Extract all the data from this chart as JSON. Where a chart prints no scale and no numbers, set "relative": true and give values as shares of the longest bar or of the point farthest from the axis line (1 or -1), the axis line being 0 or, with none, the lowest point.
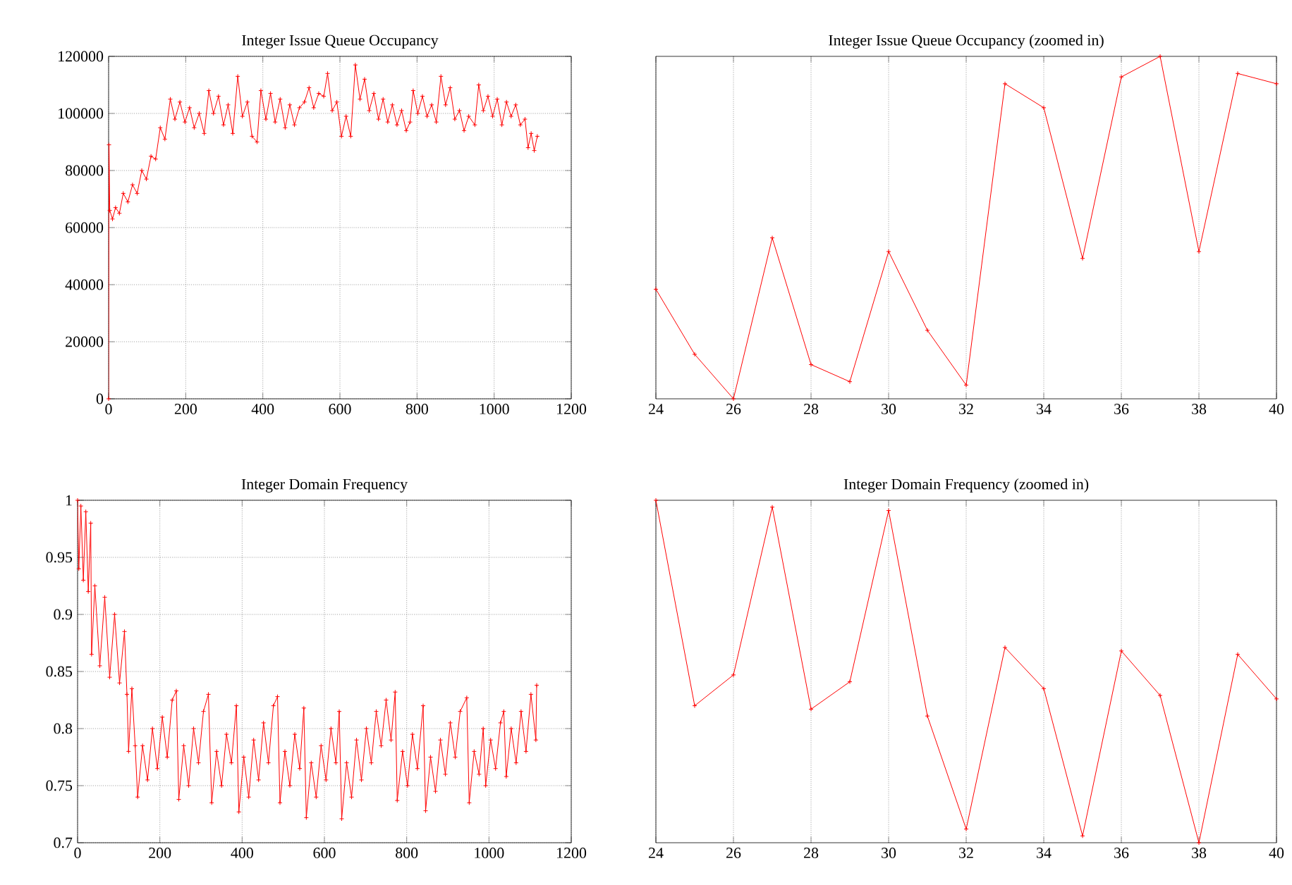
{
  "chart_data": [
    {
      "type": "line",
      "title": "Integer Issue Queue Occupancy",
      "color": "#ff0000",
      "marker": "cross",
      "line_style": "solid",
      "grid": true,
      "xlim": [
        0,
        1200
      ],
      "xticks": [
        0,
        200,
        400,
        600,
        800,
        1000,
        1200
      ],
      "ylim": [
        0,
        120000
      ],
      "yticks": [
        0,
        20000,
        40000,
        60000,
        80000,
        100000,
        120000
      ],
      "x": [
        0,
        1,
        3,
        10,
        18,
        28,
        38,
        50,
        62,
        74,
        86,
        98,
        110,
        122,
        134,
        146,
        160,
        172,
        185,
        198,
        210,
        222,
        235,
        248,
        260,
        272,
        285,
        298,
        310,
        322,
        335,
        347,
        360,
        372,
        385,
        395,
        408,
        420,
        432,
        445,
        458,
        470,
        482,
        495,
        508,
        520,
        532,
        545,
        558,
        568,
        580,
        592,
        604,
        616,
        628,
        640,
        652,
        664,
        676,
        688,
        700,
        712,
        724,
        736,
        748,
        760,
        772,
        782,
        790,
        802,
        814,
        826,
        838,
        850,
        862,
        874,
        886,
        898,
        910,
        922,
        934,
        950,
        960,
        972,
        984,
        996,
        1008,
        1020,
        1032,
        1044,
        1056,
        1068,
        1080,
        1088,
        1096,
        1104,
        1112
      ],
      "values": [
        0,
        89000,
        66000,
        63000,
        67000,
        65000,
        72000,
        69000,
        75000,
        72000,
        80000,
        77000,
        85000,
        84000,
        95000,
        91000,
        105000,
        98000,
        104000,
        97000,
        102000,
        95000,
        100000,
        93000,
        108000,
        100000,
        106000,
        96000,
        103000,
        93000,
        113000,
        99000,
        104000,
        92000,
        90000,
        108000,
        98000,
        107000,
        97000,
        105000,
        95000,
        103000,
        96000,
        102000,
        104000,
        109000,
        102000,
        107000,
        106000,
        114000,
        101000,
        104000,
        92000,
        99000,
        92000,
        117000,
        105000,
        112000,
        101000,
        107000,
        98000,
        105000,
        97000,
        103000,
        96000,
        101000,
        94000,
        97000,
        108000,
        100000,
        106000,
        99000,
        103000,
        97000,
        113000,
        103000,
        109000,
        98000,
        101000,
        94000,
        99000,
        96000,
        110000,
        101000,
        106000,
        99000,
        105000,
        96000,
        104000,
        99000,
        103000,
        96000,
        98000,
        88000,
        93000,
        87000,
        92000
      ]
    },
    {
      "type": "line",
      "title": "Integer Issue Queue Occupancy (zoomed in)",
      "color": "#ff0000",
      "marker": "cross",
      "line_style": "solid",
      "grid": "x",
      "relative": true,
      "tick_labels": "x",
      "xlim": [
        24,
        40
      ],
      "xticks": [
        24,
        26,
        28,
        30,
        32,
        34,
        36,
        38,
        40
      ],
      "x": [
        24,
        25,
        26,
        27,
        28,
        29,
        30,
        31,
        32,
        33,
        34,
        35,
        36,
        37,
        38,
        39,
        40
      ],
      "values": [
        0.32,
        0.13,
        0,
        0.47,
        0.1,
        0.05,
        0.43,
        0.2,
        0.04,
        0.92,
        0.85,
        0.41,
        0.94,
        1,
        0.43,
        0.95,
        0.92
      ]
    },
    {
      "type": "line",
      "title": "Integer Domain Frequency",
      "color": "#ff0000",
      "marker": "cross",
      "line_style": "solid",
      "grid": true,
      "xlim": [
        0,
        1200
      ],
      "xticks": [
        0,
        200,
        400,
        600,
        800,
        1000,
        1200
      ],
      "ylim": [
        0.7,
        1
      ],
      "yticks": [
        0.7,
        0.75,
        0.8,
        0.85,
        0.9,
        0.95,
        1
      ],
      "x": [
        0,
        3,
        8,
        14,
        20,
        26,
        32,
        34,
        42,
        54,
        66,
        78,
        90,
        102,
        114,
        120,
        124,
        132,
        140,
        146,
        158,
        170,
        182,
        194,
        206,
        218,
        230,
        240,
        246,
        258,
        270,
        282,
        294,
        306,
        318,
        326,
        338,
        350,
        362,
        374,
        386,
        392,
        404,
        416,
        428,
        440,
        452,
        464,
        476,
        486,
        492,
        504,
        516,
        528,
        540,
        550,
        556,
        568,
        580,
        592,
        604,
        616,
        628,
        636,
        642,
        654,
        666,
        678,
        690,
        702,
        714,
        726,
        738,
        750,
        762,
        772,
        777,
        790,
        802,
        814,
        826,
        840,
        846,
        858,
        870,
        882,
        894,
        906,
        918,
        930,
        946,
        952,
        964,
        976,
        986,
        992,
        1004,
        1016,
        1028,
        1036,
        1042,
        1054,
        1066,
        1078,
        1090,
        1102,
        1114,
        1116
      ],
      "values": [
        1.0,
        0.94,
        0.995,
        0.93,
        0.99,
        0.92,
        0.98,
        0.865,
        0.925,
        0.855,
        0.915,
        0.845,
        0.9,
        0.84,
        0.885,
        0.83,
        0.78,
        0.835,
        0.785,
        0.74,
        0.785,
        0.755,
        0.8,
        0.765,
        0.81,
        0.775,
        0.825,
        0.833,
        0.738,
        0.785,
        0.75,
        0.8,
        0.77,
        0.815,
        0.83,
        0.735,
        0.78,
        0.75,
        0.795,
        0.77,
        0.82,
        0.727,
        0.775,
        0.74,
        0.79,
        0.755,
        0.805,
        0.77,
        0.82,
        0.828,
        0.735,
        0.78,
        0.75,
        0.795,
        0.765,
        0.818,
        0.722,
        0.77,
        0.74,
        0.785,
        0.755,
        0.8,
        0.77,
        0.815,
        0.721,
        0.77,
        0.74,
        0.79,
        0.755,
        0.8,
        0.77,
        0.815,
        0.785,
        0.825,
        0.79,
        0.832,
        0.737,
        0.78,
        0.75,
        0.795,
        0.765,
        0.82,
        0.728,
        0.775,
        0.745,
        0.79,
        0.76,
        0.805,
        0.775,
        0.815,
        0.827,
        0.735,
        0.78,
        0.76,
        0.8,
        0.75,
        0.79,
        0.765,
        0.805,
        0.815,
        0.758,
        0.8,
        0.77,
        0.815,
        0.78,
        0.83,
        0.79,
        0.838
      ]
    },
    {
      "type": "line",
      "title": "Integer Domain Frequency (zoomed in)",
      "color": "#ff0000",
      "marker": "cross",
      "line_style": "solid",
      "grid": "x",
      "relative": true,
      "tick_labels": "x",
      "xlim": [
        24,
        40
      ],
      "xticks": [
        24,
        26,
        28,
        30,
        32,
        34,
        36,
        38,
        40
      ],
      "x": [
        24,
        25,
        26,
        27,
        28,
        29,
        30,
        31,
        32,
        33,
        34,
        35,
        36,
        37,
        38,
        39,
        40
      ],
      "values": [
        1,
        0.4,
        0.49,
        0.98,
        0.39,
        0.47,
        0.97,
        0.37,
        0.04,
        0.57,
        0.45,
        0.02,
        0.56,
        0.43,
        0,
        0.55,
        0.42
      ]
    }
  ]
}
